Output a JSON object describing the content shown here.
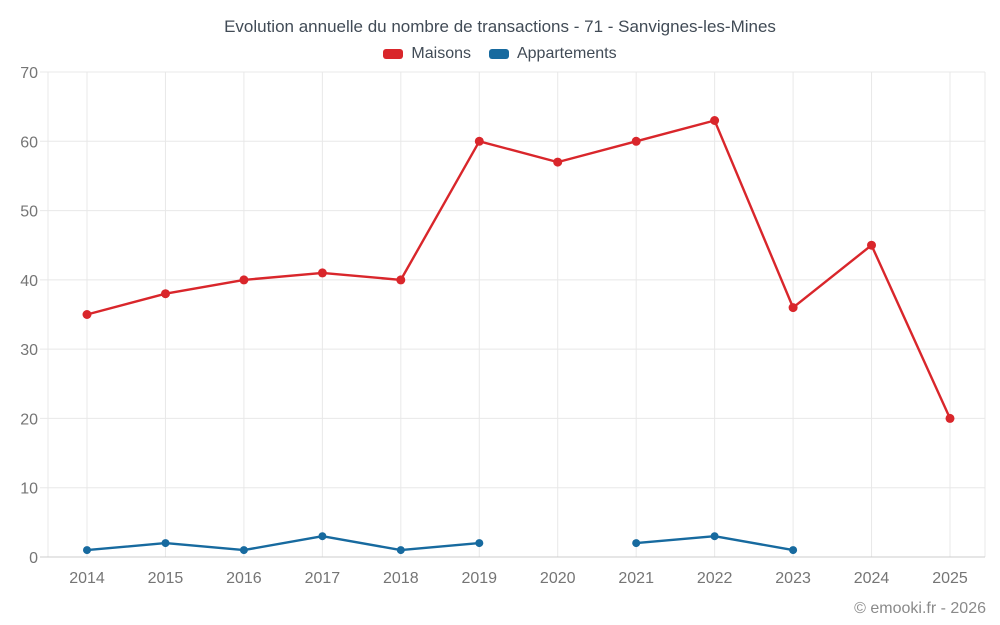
{
  "chart_data": {
    "type": "line",
    "title": "Evolution annuelle du nombre de transactions - 71 - Sanvignes-les-Mines",
    "categories": [
      "2014",
      "2015",
      "2016",
      "2017",
      "2018",
      "2019",
      "2020",
      "2021",
      "2022",
      "2023",
      "2024",
      "2025"
    ],
    "series": [
      {
        "name": "Maisons",
        "color": "#d9262b",
        "marker_radius": 4.5,
        "values": [
          35,
          38,
          40,
          41,
          40,
          60,
          57,
          60,
          63,
          36,
          45,
          20
        ]
      },
      {
        "name": "Appartements",
        "color": "#176a9f",
        "marker_radius": 4,
        "values": [
          1,
          2,
          1,
          3,
          1,
          2,
          null,
          2,
          3,
          1,
          null,
          null
        ]
      }
    ],
    "xlabel": "",
    "ylabel": "",
    "ylim": [
      0,
      70
    ],
    "yticks": [
      0,
      10,
      20,
      30,
      40,
      50,
      60,
      70
    ],
    "grid": true,
    "legend_position": "top-center",
    "copyright": "© emooki.fr - 2026"
  },
  "colors": {
    "background": "#ffffff",
    "grid": "#e8e8e8",
    "axis": "#cccccc",
    "tick_label": "#757575",
    "title_text": "#414b56",
    "legend_text": "#414b56",
    "copyright_text": "#8a8a8a"
  }
}
